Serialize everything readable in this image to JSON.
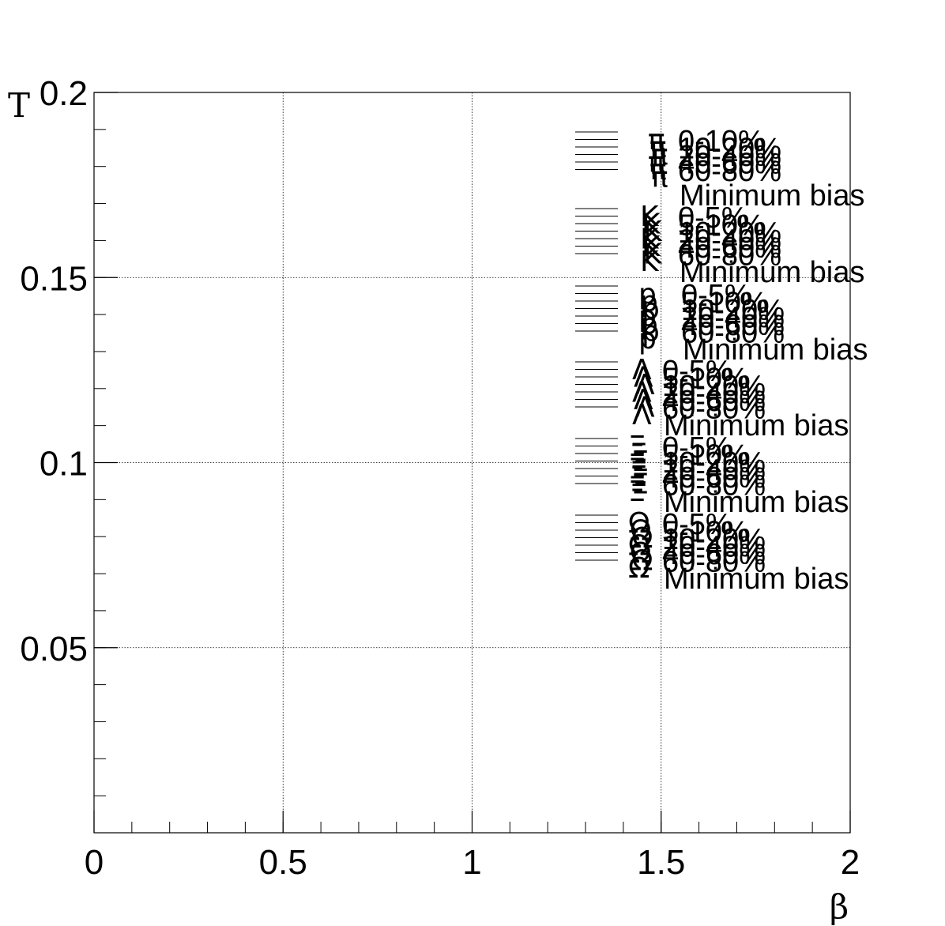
{
  "chart_data": {
    "type": "scatter",
    "title": "",
    "xlabel": "β",
    "ylabel": "T",
    "xlim": [
      0,
      2
    ],
    "ylim": [
      0,
      0.2
    ],
    "xticks": [
      "0",
      "0.5",
      "1",
      "1.5",
      "2"
    ],
    "yticks": [
      "0.05",
      "0.1",
      "0.15",
      "0.2"
    ],
    "grid": true,
    "legend": {
      "placement": "right",
      "groups": [
        {
          "symbol": "π",
          "entries": [
            "0-10%",
            "10-20%",
            "20-40%",
            "40-60%",
            "60-80%",
            "Minimum bias"
          ]
        },
        {
          "symbol": "K",
          "entries": [
            "0-5%",
            "5-10%",
            "10-20%",
            "20-40%",
            "40-60%",
            "60-80%",
            "Minimum bias"
          ]
        },
        {
          "symbol": "p",
          "entries": [
            "0-5%",
            "5-10%",
            "10-20%",
            "20-40%",
            "40-60%",
            "60-80%",
            "Minimum bias"
          ]
        },
        {
          "symbol": "Λ",
          "entries": [
            "0-5%",
            "5-10%",
            "10-20%",
            "20-40%",
            "40-60%",
            "60-80%",
            "Minimum bias"
          ]
        },
        {
          "symbol": "Ξ",
          "entries": [
            "0-5%",
            "5-10%",
            "10-20%",
            "20-40%",
            "40-60%",
            "60-80%",
            "Minimum bias"
          ]
        },
        {
          "symbol": "Ω",
          "entries": [
            "0-5%",
            "5-10%",
            "10-20%",
            "20-40%",
            "40-60%",
            "60-80%",
            "Minimum bias"
          ]
        }
      ]
    }
  }
}
